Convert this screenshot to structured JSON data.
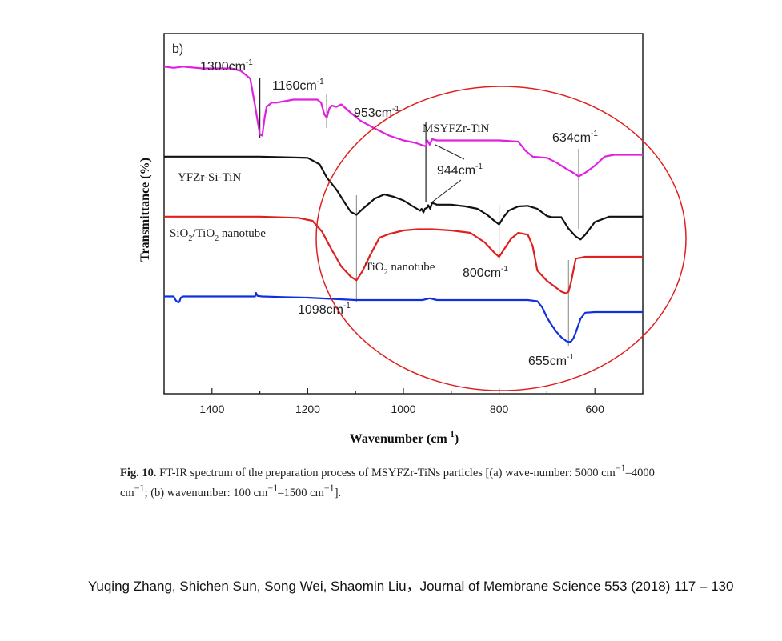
{
  "chart_data": {
    "type": "line",
    "panel_label": "b)",
    "xlabel": "Wavenumber (cm",
    "xlabel_sup": "-1",
    "xlabel_close": ")",
    "ylabel": "Transmittance (%)",
    "xlim": [
      1500,
      500
    ],
    "x_reversed": true,
    "x_ticks": [
      1400,
      1200,
      1000,
      800,
      600
    ],
    "grid": false,
    "legend_position": "inline-labels",
    "series": [
      {
        "name": "MSYFZr-TiN",
        "color": "#e020e0",
        "x": [
          1500,
          1480,
          1460,
          1420,
          1360,
          1340,
          1320,
          1310,
          1300,
          1295,
          1290,
          1286,
          1275,
          1265,
          1230,
          1180,
          1172,
          1165,
          1160,
          1155,
          1150,
          1140,
          1130,
          1110,
          1090,
          1060,
          1030,
          1000,
          975,
          953,
          950,
          945,
          940,
          930,
          900,
          860,
          800,
          760,
          745,
          730,
          700,
          680,
          660,
          645,
          634,
          620,
          600,
          580,
          560,
          530,
          500
        ],
        "y": [
          94.5,
          94.3,
          94.5,
          94.2,
          94.2,
          93.8,
          92.5,
          88,
          83.2,
          83,
          86,
          87.8,
          88.5,
          88.5,
          89,
          89,
          88.5,
          86.5,
          86,
          87.5,
          88,
          87.8,
          88.2,
          86.8,
          85.5,
          84.2,
          83,
          82.2,
          81.8,
          81.2,
          82.2,
          81.5,
          82.4,
          82.2,
          82.2,
          82.2,
          82.2,
          82,
          80.5,
          79.5,
          79.3,
          78.5,
          77.5,
          76.8,
          76.2,
          76.8,
          78,
          79.5,
          79.8,
          79.8,
          79.8
        ]
      },
      {
        "name": "YFZr-Si-TiN",
        "color": "#111111",
        "x": [
          1500,
          1300,
          1200,
          1175,
          1160,
          1140,
          1120,
          1110,
          1098,
          1085,
          1060,
          1040,
          1020,
          1000,
          980,
          965,
          962,
          958,
          955,
          950,
          948,
          944,
          940,
          930,
          900,
          870,
          845,
          825,
          810,
          800,
          790,
          780,
          760,
          740,
          720,
          700,
          690,
          670,
          655,
          640,
          630,
          620,
          600,
          570,
          540,
          500
        ],
        "y": [
          79.5,
          79.5,
          79.3,
          78.2,
          76,
          74,
          71.5,
          70.3,
          69.8,
          70.8,
          72.5,
          73.2,
          72.8,
          72.2,
          71.2,
          70.5,
          70.8,
          70.2,
          70.8,
          71,
          71.4,
          70.8,
          71.8,
          71.5,
          71.5,
          71.2,
          70.8,
          69.8,
          68.8,
          68.2,
          69.5,
          70.5,
          71.2,
          71.3,
          70.8,
          69.6,
          69.4,
          69.4,
          67.5,
          66.2,
          65.7,
          66.5,
          68.6,
          69.5,
          69.5,
          69.5
        ]
      },
      {
        "name": "SiO2/TiO2 nanotube",
        "color": "#e02020",
        "x": [
          1500,
          1300,
          1220,
          1190,
          1170,
          1150,
          1130,
          1110,
          1098,
          1085,
          1070,
          1060,
          1050,
          1030,
          1000,
          970,
          940,
          900,
          860,
          830,
          810,
          800,
          790,
          775,
          760,
          740,
          730,
          720,
          700,
          680,
          670,
          660,
          655,
          650,
          645,
          640,
          620,
          600,
          570,
          540,
          500
        ],
        "y": [
          69.5,
          69.5,
          69.3,
          68.8,
          67,
          64,
          61.2,
          59.5,
          58.9,
          60.5,
          63,
          64.5,
          66,
          66.6,
          67.2,
          67.4,
          67.4,
          67.2,
          66.8,
          65.2,
          63.5,
          62.8,
          64,
          65.8,
          66.8,
          66.5,
          64.6,
          60.5,
          58.8,
          57.6,
          57,
          56.7,
          57,
          58.5,
          60.5,
          62.5,
          62.8,
          62.8,
          62.8,
          62.8,
          62.8
        ]
      },
      {
        "name": "TiO2 nanotube",
        "color": "#1030e0",
        "x": [
          1500,
          1480,
          1475,
          1470,
          1468,
          1465,
          1460,
          1440,
          1320,
          1310,
          1308,
          1305,
          1295,
          1250,
          1200,
          1150,
          1100,
          1050,
          1000,
          960,
          945,
          930,
          900,
          850,
          800,
          760,
          740,
          720,
          710,
          700,
          690,
          680,
          670,
          660,
          655,
          650,
          645,
          640,
          630,
          620,
          600,
          570,
          540,
          500
        ],
        "y": [
          56.2,
          56.2,
          55.5,
          55.2,
          55.3,
          56,
          56.2,
          56.2,
          56.2,
          56.2,
          56.8,
          56.3,
          56.2,
          56.1,
          56,
          55.8,
          55.6,
          55.6,
          55.6,
          55.6,
          55.9,
          55.6,
          55.6,
          55.6,
          55.6,
          55.6,
          55.6,
          55.4,
          54.4,
          52.7,
          51.4,
          50.3,
          49.4,
          48.8,
          48.6,
          48.7,
          49.2,
          50.2,
          52.5,
          53.5,
          53.6,
          53.6,
          53.6,
          53.6
        ]
      }
    ],
    "series_labels": [
      {
        "text": "MSYFZr-TiN",
        "series": "MSYFZr-TiN"
      },
      {
        "text": "YFZr-Si-TiN",
        "series": "YFZr-Si-TiN"
      },
      {
        "text": "SiO",
        "sub1": "2",
        "mid": "/TiO",
        "sub2": "2",
        "tail": " nanotube",
        "series": "SiO2/TiO2 nanotube"
      },
      {
        "text": "TiO",
        "sub1": "2",
        "tail": " nanotube",
        "series": "TiO2 nanotube"
      }
    ],
    "annotations": [
      {
        "text": "1300cm",
        "sup": "-1",
        "x": 1300
      },
      {
        "text": "1160cm",
        "sup": "-1",
        "x": 1160
      },
      {
        "text": "953cm",
        "sup": "-1",
        "x": 953
      },
      {
        "text": "944cm",
        "sup": "-1",
        "x": 944
      },
      {
        "text": "634cm",
        "sup": "-1",
        "x": 634
      },
      {
        "text": "800cm",
        "sup": "-1",
        "x": 800
      },
      {
        "text": "1098cm",
        "sup": "-1",
        "x": 1098
      },
      {
        "text": "655cm",
        "sup": "-1",
        "x": 655
      }
    ],
    "highlight": {
      "shape": "ellipse",
      "color": "#e02020"
    }
  },
  "caption": {
    "label": "Fig. 10.",
    "text": " FT-IR spectrum of the preparation process of MSYFZr-TiNs particles [(a) wave-number: 5000 cm",
    "sup1": "−1",
    "mid": "–4000 cm",
    "sup2": "−1",
    "mid2": "; (b) wavenumber: 100 cm",
    "sup3": "−1",
    "mid3": "–1500 cm",
    "sup4": "−1",
    "end": "]."
  },
  "citation": {
    "text": "Yuqing Zhang, Shichen Sun, Song Wei, Shaomin Liu，Journal of Membrane Science 553 (2018) 117 – 130"
  }
}
